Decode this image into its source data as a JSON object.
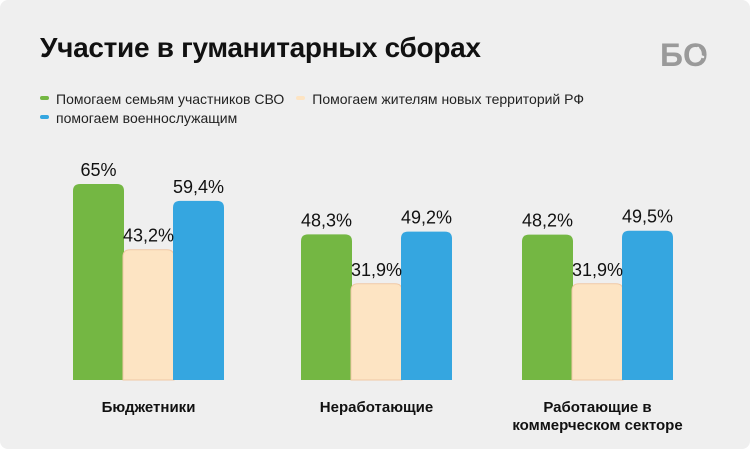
{
  "title": "Участие в гуманитарных сборах",
  "logo": {
    "text": "БО",
    "icon": "clock-icon",
    "color": "#9a9a9a"
  },
  "chart_data": {
    "type": "bar",
    "categories": [
      "Бюджетники",
      "Неработающие",
      "Работающие в\nкоммерческом секторе"
    ],
    "series": [
      {
        "name": "Помогаем семьям участников СВО",
        "color": "#74b743",
        "values": [
          65,
          48.3,
          48.2
        ],
        "labels": [
          "65%",
          "48,3%",
          "48,2%"
        ]
      },
      {
        "name": "Помогаем жителям новых территорий РФ",
        "color": "#fde4c3",
        "values": [
          43.2,
          31.9,
          31.9
        ],
        "labels": [
          "43,2%",
          "31,9%",
          "31,9%"
        ]
      },
      {
        "name": "помогаем военнослужащим",
        "color": "#35a6e0",
        "values": [
          59.4,
          49.2,
          49.5
        ],
        "labels": [
          "59,4%",
          "49,2%",
          "49,5%"
        ]
      }
    ],
    "ylim": [
      0,
      65
    ],
    "grid": false,
    "legend": "top-left"
  }
}
